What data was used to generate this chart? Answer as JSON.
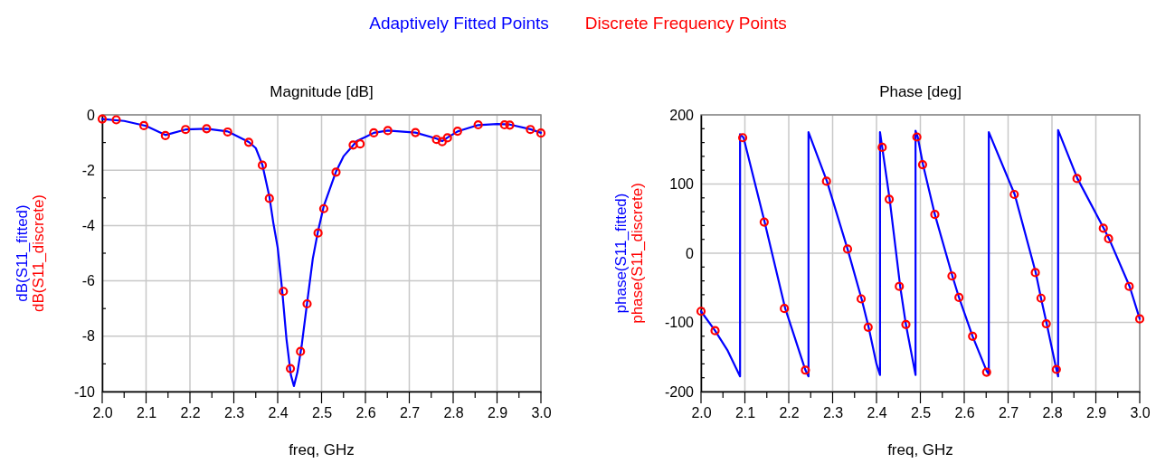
{
  "chart_data": [
    {
      "type": "line",
      "title": "Magnitude [dB]",
      "xlabel": "freq, GHz",
      "ylabel": "dB(S11_fitted)\ndB(S11_discrete)",
      "xlim": [
        2,
        3
      ],
      "ylim": [
        -10,
        0
      ],
      "xticks": [
        {
          "value": 2,
          "label": "2.0"
        },
        {
          "value": 2.05,
          "label": null
        },
        2.1,
        {
          "value": 2.15,
          "label": null
        },
        2.2,
        {
          "value": 2.25,
          "label": null
        },
        2.3,
        {
          "value": 2.35,
          "label": null
        },
        2.4,
        {
          "value": 2.45,
          "label": null
        },
        2.5,
        {
          "value": 2.55,
          "label": null
        },
        2.6,
        {
          "value": 2.65,
          "label": null
        },
        2.7,
        {
          "value": 2.75,
          "label": null
        },
        2.8,
        {
          "value": 2.85,
          "label": null
        },
        2.9,
        {
          "value": 2.95,
          "label": null
        },
        {
          "value": 3,
          "label": "3.0"
        }
      ],
      "yticks": [
        -10,
        {
          "value": -9,
          "label": null
        },
        -8,
        {
          "value": -7,
          "label": null
        },
        -6,
        {
          "value": -5,
          "label": null
        },
        -4,
        {
          "value": -3,
          "label": null
        },
        -2,
        {
          "value": -1,
          "label": null
        },
        0
      ],
      "grid": true,
      "legend": "top",
      "line_style": "solid",
      "series": [
        {
          "name": "Adaptively Fitted Points",
          "color": "#0000ff",
          "marker": "none",
          "x": [
            2.0,
            2.05,
            2.1,
            2.144,
            2.19,
            2.238,
            2.286,
            2.334,
            2.35,
            2.365,
            2.381,
            2.39,
            2.4,
            2.41,
            2.42,
            2.43,
            2.437,
            2.445,
            2.455,
            2.467,
            2.48,
            2.492,
            2.505,
            2.533,
            2.55,
            2.572,
            2.58,
            2.6,
            2.619,
            2.651,
            2.714,
            2.762,
            2.775,
            2.787,
            2.81,
            2.857,
            2.9,
            2.929,
            2.976,
            3.0
          ],
          "values": [
            -0.15,
            -0.22,
            -0.4,
            -0.73,
            -0.53,
            -0.5,
            -0.6,
            -0.98,
            -1.2,
            -1.8,
            -2.95,
            -3.9,
            -4.8,
            -6.3,
            -8.1,
            -9.4,
            -9.8,
            -9.3,
            -8.3,
            -6.8,
            -5.2,
            -4.2,
            -3.3,
            -2.05,
            -1.5,
            -1.1,
            -0.95,
            -0.8,
            -0.65,
            -0.57,
            -0.64,
            -0.86,
            -0.95,
            -0.82,
            -0.6,
            -0.37,
            -0.33,
            -0.35,
            -0.52,
            -0.65
          ]
        },
        {
          "name": "Discrete Frequency Points",
          "type": "scatter",
          "color": "#ff0000",
          "marker": "circle",
          "x": [
            2.0,
            2.032,
            2.095,
            2.144,
            2.19,
            2.238,
            2.286,
            2.334,
            2.365,
            2.381,
            2.413,
            2.429,
            2.452,
            2.467,
            2.492,
            2.505,
            2.533,
            2.572,
            2.588,
            2.619,
            2.651,
            2.714,
            2.762,
            2.775,
            2.787,
            2.81,
            2.857,
            2.917,
            2.929,
            2.976,
            3.0
          ],
          "values": [
            -0.15,
            -0.18,
            -0.39,
            -0.75,
            -0.53,
            -0.5,
            -0.62,
            -0.99,
            -1.82,
            -3.02,
            -6.38,
            -9.17,
            -8.55,
            -6.83,
            -4.27,
            -3.39,
            -2.07,
            -1.09,
            -1.05,
            -0.65,
            -0.57,
            -0.64,
            -0.89,
            -0.97,
            -0.83,
            -0.59,
            -0.36,
            -0.36,
            -0.37,
            -0.53,
            -0.66
          ]
        }
      ]
    },
    {
      "type": "line",
      "title": "Phase [deg]",
      "xlabel": "freq, GHz",
      "ylabel": "phase(S11_fitted)\nphase(S11_discrete)",
      "xlim": [
        2,
        3
      ],
      "ylim": [
        -200,
        200
      ],
      "xticks": [
        {
          "value": 2,
          "label": "2.0"
        },
        {
          "value": 2.05,
          "label": null
        },
        2.1,
        {
          "value": 2.15,
          "label": null
        },
        2.2,
        {
          "value": 2.25,
          "label": null
        },
        2.3,
        {
          "value": 2.35,
          "label": null
        },
        2.4,
        {
          "value": 2.45,
          "label": null
        },
        2.5,
        {
          "value": 2.55,
          "label": null
        },
        2.6,
        {
          "value": 2.65,
          "label": null
        },
        2.7,
        {
          "value": 2.75,
          "label": null
        },
        2.8,
        {
          "value": 2.85,
          "label": null
        },
        2.9,
        {
          "value": 2.95,
          "label": null
        },
        {
          "value": 3,
          "label": "3.0"
        }
      ],
      "yticks": [
        -200,
        {
          "value": -180,
          "label": null
        },
        {
          "value": -160,
          "label": null
        },
        {
          "value": -140,
          "label": null
        },
        {
          "value": -120,
          "label": null
        },
        -100,
        {
          "value": -80,
          "label": null
        },
        {
          "value": -60,
          "label": null
        },
        {
          "value": -40,
          "label": null
        },
        {
          "value": -20,
          "label": null
        },
        0,
        {
          "value": 20,
          "label": null
        },
        {
          "value": 40,
          "label": null
        },
        {
          "value": 60,
          "label": null
        },
        {
          "value": 80,
          "label": null
        },
        100,
        {
          "value": 120,
          "label": null
        },
        {
          "value": 140,
          "label": null
        },
        {
          "value": 160,
          "label": null
        },
        {
          "value": 180,
          "label": null
        },
        200
      ],
      "grid": true,
      "line_style": "solid",
      "series": [
        {
          "color": "#0000ff",
          "marker": "none",
          "x": [
            2.0,
            2.032,
            2.06,
            2.089,
            2.089,
            2.097,
            2.145,
            2.192,
            2.238,
            2.245,
            2.245,
            2.287,
            2.334,
            2.366,
            2.382,
            2.4,
            2.408,
            2.408,
            2.413,
            2.43,
            2.454,
            2.467,
            2.489,
            2.489,
            2.494,
            2.506,
            2.533,
            2.573,
            2.588,
            2.619,
            2.651,
            2.656,
            2.656,
            2.715,
            2.763,
            2.775,
            2.788,
            2.81,
            2.814,
            2.814,
            2.858,
            2.918,
            2.93,
            2.977,
            3.0
          ],
          "values": [
            -84,
            -112,
            -140,
            -178,
            172,
            167,
            45,
            -80,
            -169,
            -178,
            175,
            104,
            6,
            -66,
            -107,
            -160,
            -176,
            175,
            153,
            78,
            -48,
            -103,
            -176,
            177,
            168,
            128,
            56,
            -33,
            -64,
            -120,
            -170,
            -175,
            175,
            85,
            -28,
            -65,
            -102,
            -168,
            -178,
            178,
            108,
            36,
            21,
            -48,
            -95
          ]
        },
        {
          "type": "scatter",
          "color": "#ff0000",
          "marker": "circle",
          "x": [
            2.0,
            2.032,
            2.095,
            2.144,
            2.19,
            2.238,
            2.286,
            2.334,
            2.365,
            2.381,
            2.413,
            2.429,
            2.452,
            2.467,
            2.492,
            2.505,
            2.533,
            2.572,
            2.588,
            2.619,
            2.651,
            2.714,
            2.762,
            2.775,
            2.787,
            2.81,
            2.857,
            2.917,
            2.929,
            2.976,
            3.0
          ],
          "values": [
            -84,
            -112,
            167,
            45,
            -80,
            -169,
            104,
            6,
            -66,
            -107,
            153,
            78,
            -48,
            -103,
            168,
            128,
            56,
            -33,
            -64,
            -120,
            -172,
            85,
            -28,
            -65,
            -102,
            -168,
            108,
            36,
            21,
            -48,
            -95
          ]
        }
      ]
    }
  ]
}
